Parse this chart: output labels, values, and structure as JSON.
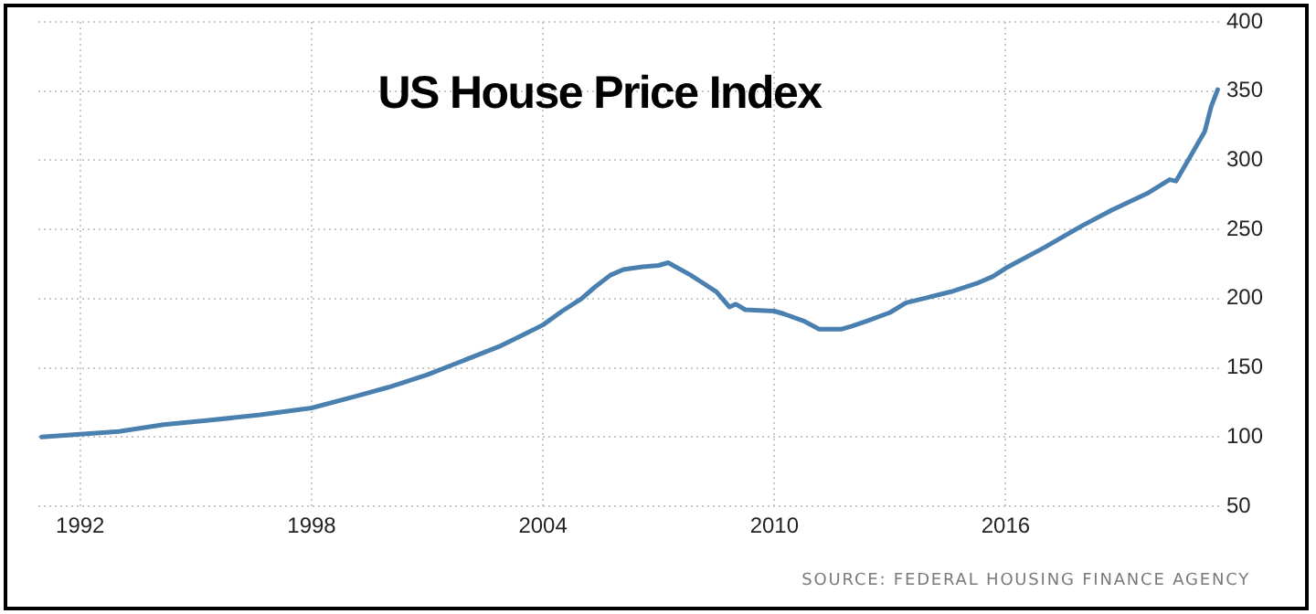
{
  "chart_data": {
    "type": "line",
    "title": "US House Price Index",
    "x": [
      "1991-01",
      "1992-01",
      "1993-01",
      "1994-03",
      "1995-05",
      "1996-09",
      "1998-01",
      "1999-02",
      "2000-01",
      "2001-01",
      "2001-12",
      "2002-12",
      "2003-07",
      "2004-01",
      "2004-07",
      "2005-01",
      "2005-05",
      "2005-10",
      "2006-02",
      "2006-08",
      "2007-01",
      "2007-04",
      "2007-11",
      "2008-07",
      "2008-11",
      "2009-01",
      "2009-04",
      "2010-01",
      "2010-04",
      "2010-10",
      "2011-03",
      "2011-10",
      "2012-01",
      "2012-06",
      "2013-01",
      "2013-06",
      "2014-01",
      "2014-08",
      "2015-04",
      "2015-09",
      "2016-01",
      "2017-01",
      "2018-01",
      "2018-10",
      "2019-09",
      "2020-04",
      "2020-06",
      "2020-10",
      "2021-03",
      "2021-05",
      "2021-07"
    ],
    "values": [
      100,
      102,
      104,
      109,
      112,
      116,
      121,
      129,
      136,
      145,
      155,
      166,
      174,
      181,
      191,
      200,
      208,
      217,
      221,
      223,
      224,
      226,
      217,
      205,
      194,
      196,
      192,
      191,
      189,
      184,
      178,
      178,
      180,
      184,
      190,
      197,
      201,
      205,
      211,
      216,
      222,
      237,
      253,
      264,
      276,
      286,
      285,
      301,
      321,
      339,
      351
    ],
    "color": "#4a80b0",
    "xlim": [
      "1990-12",
      "2021-08"
    ],
    "xticks": [
      "1992",
      "1998",
      "2004",
      "2010",
      "2016"
    ],
    "ylim": [
      50,
      400
    ],
    "yticks": [
      50,
      100,
      150,
      200,
      250,
      300,
      350,
      400
    ],
    "grid": true,
    "annotations": [
      "SOURCE: FEDERAL HOUSING FINANCE AGENCY"
    ]
  }
}
